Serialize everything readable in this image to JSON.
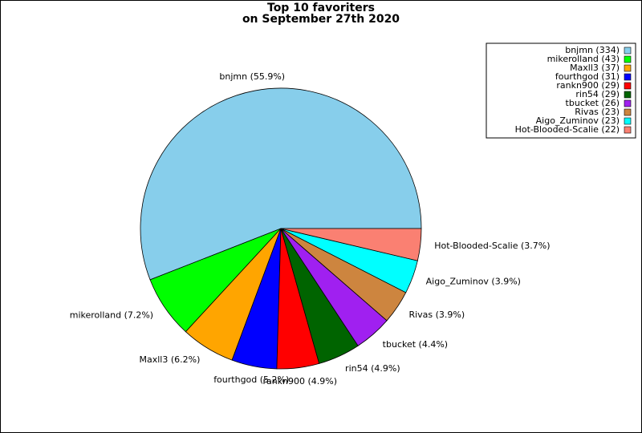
{
  "chart_data": {
    "type": "pie",
    "title": "Top 10 favoriters",
    "subtitle": "on September 27th 2020",
    "categories": [
      "bnjmn (334)",
      "mikerolland (43)",
      "Maxll3 (37)",
      "fourthgod (31)",
      "rankn900 (29)",
      "rin54 (29)",
      "tbucket (26)",
      "Rivas (23)",
      "Aigo_Zuminov (23)",
      "Hot-Blooded-Scalie (22)"
    ],
    "values": [
      334,
      43,
      37,
      31,
      29,
      29,
      26,
      23,
      23,
      22
    ],
    "labels": [
      "bnjmn (55.9%)",
      "mikerolland (7.2%)",
      "Maxll3 (6.2%)",
      "fourthgod (5.2%)",
      "rankn900 (4.9%)",
      "rin54 (4.9%)",
      "tbucket (4.4%)",
      "Rivas (3.9%)",
      "Aigo_Zuminov (3.9%)",
      "Hot-Blooded-Scalie (3.7%)"
    ],
    "colors": [
      "#87ceeb",
      "#00ff00",
      "#ffa500",
      "#0000ff",
      "#ff0000",
      "#006400",
      "#a020f0",
      "#cd853f",
      "#00ffff",
      "#fa8072"
    ],
    "legend": "upper right"
  }
}
